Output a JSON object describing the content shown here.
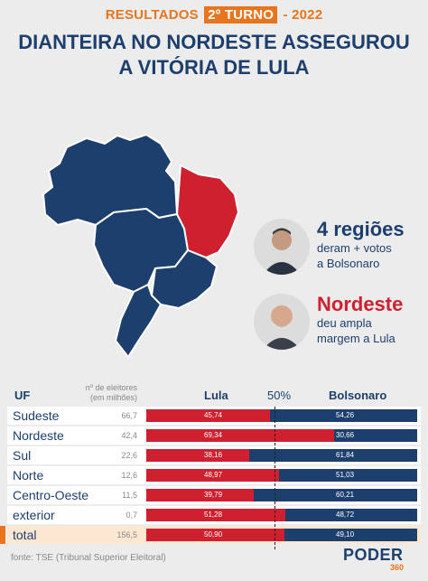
{
  "header": {
    "kicker_pre": "RESULTADOS",
    "kicker_box": "2º TURNO",
    "kicker_post": "- 2022",
    "title_line1": "DIANTEIRA NO NORDESTE ASSEGUROU",
    "title_line2": "A VITÓRIA DE LULA"
  },
  "legend": {
    "bolsonaro_big": "4 regiões",
    "bolsonaro_small1": "deram + votos",
    "bolsonaro_small2": "a Bolsonaro",
    "lula_big": "Nordeste",
    "lula_small1": "deu ampla",
    "lula_small2": "margem a Lula"
  },
  "colors": {
    "lula": "#cf2030",
    "bolsonaro": "#1d3f6e",
    "accent": "#e8741e"
  },
  "chart_data": {
    "type": "bar",
    "stacked": true,
    "headers": {
      "uf": "UF",
      "electors_line1": "nº de eleitores",
      "electors_line2": "(em milhões)",
      "lula": "Lula",
      "midpoint": "50%",
      "bolsonaro": "Bolsonaro"
    },
    "categories": [
      "Sudeste",
      "Nordeste",
      "Sul",
      "Norte",
      "Centro-Oeste",
      "exterior",
      "total"
    ],
    "electors": [
      "66,7",
      "42,4",
      "22,6",
      "12,6",
      "11,5",
      "0,7",
      "156,5"
    ],
    "series": [
      {
        "name": "Lula",
        "values": [
          45.74,
          69.34,
          38.16,
          48.97,
          39.79,
          51.28,
          50.9
        ],
        "labels": [
          "45,74",
          "69,34",
          "38,16",
          "48,97",
          "39,79",
          "51,28",
          "50,90"
        ]
      },
      {
        "name": "Bolsonaro",
        "values": [
          54.26,
          30.66,
          61.84,
          51.03,
          60.21,
          48.72,
          49.1
        ],
        "labels": [
          "54,26",
          "30,66",
          "61,84",
          "51,03",
          "60,21",
          "48,72",
          "49,10"
        ]
      }
    ],
    "ylim": [
      0,
      100
    ]
  },
  "footer": {
    "source": "fonte: TSE (Tribunal Superior Eleitoral)",
    "logo_main": "PODER",
    "logo_sub": "360"
  }
}
